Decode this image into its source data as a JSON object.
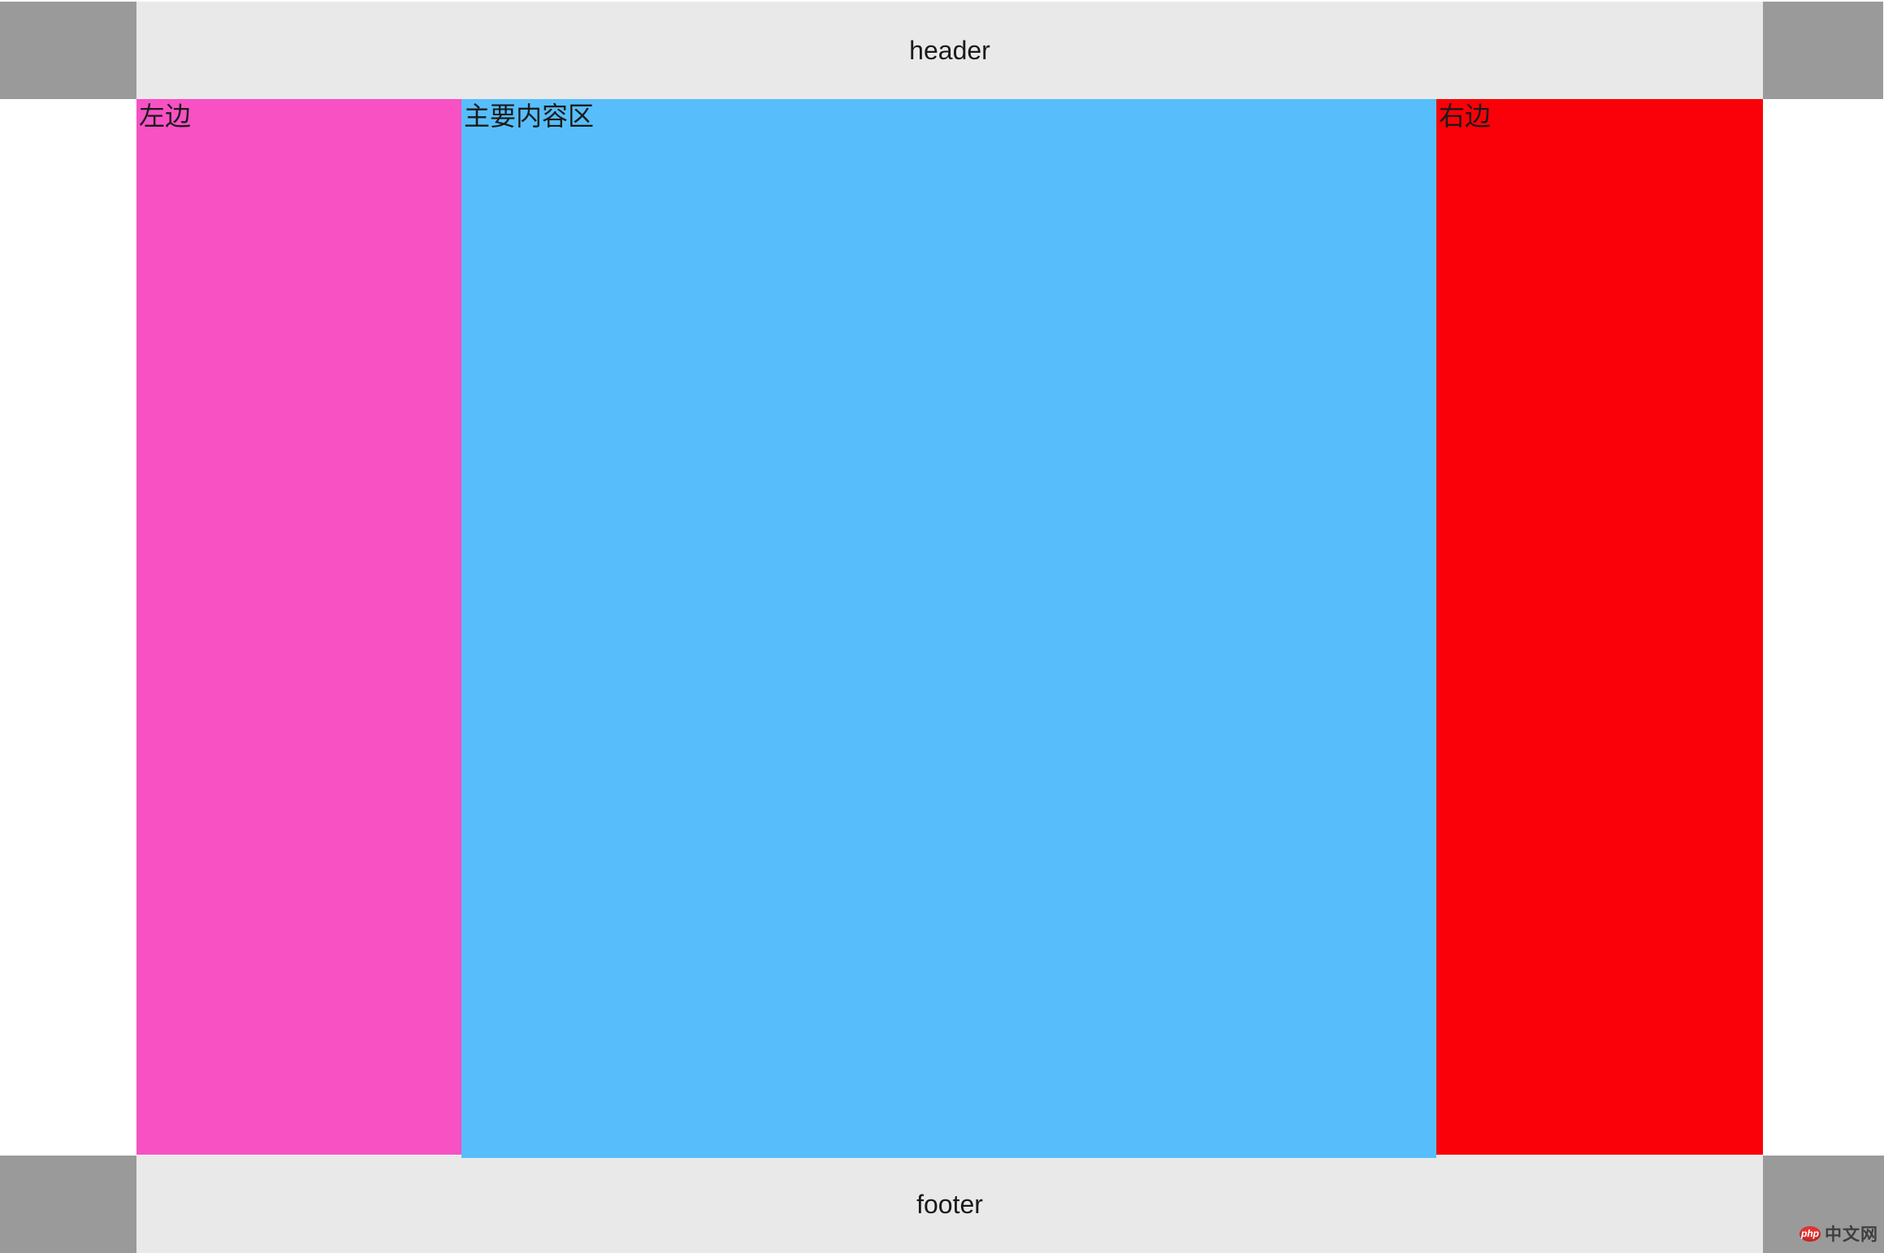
{
  "page": {
    "background": "#ffffff"
  },
  "header": {
    "label": "header",
    "background": "#e9e9e9",
    "text_color": "#1a1a1a"
  },
  "columns": {
    "left": {
      "label": "左边",
      "background": "#f751c4"
    },
    "main": {
      "label": "主要内容区",
      "background": "#57befb"
    },
    "right": {
      "label": "右边",
      "background": "#fa0008"
    }
  },
  "footer": {
    "label": "footer",
    "background": "#e9e9e9"
  },
  "corners": {
    "background": "#9a9a9a"
  },
  "watermark": {
    "logo_text": "php",
    "site_text": "中文网",
    "logo_color": "#e13434",
    "text_color": "#3e3e3e"
  }
}
